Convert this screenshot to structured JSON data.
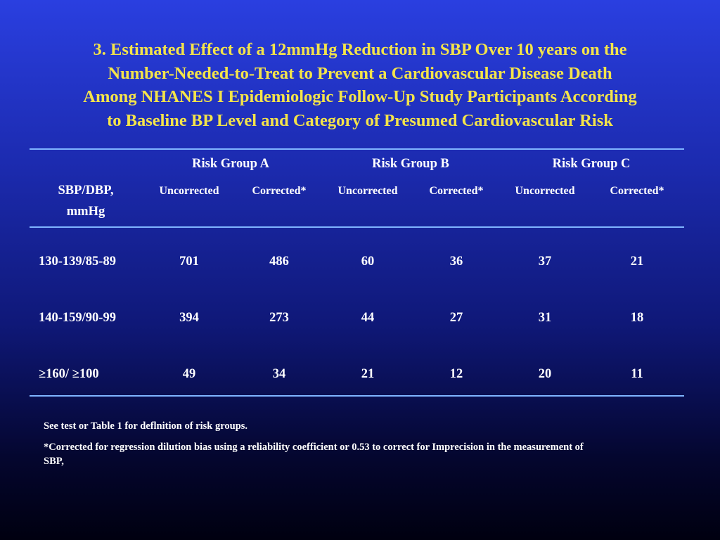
{
  "title_lines": [
    "3.  Estimated Effect of a 12mmHg Reduction in SBP Over 10 years on the",
    "Number-Needed-to-Treat to Prevent a Cardiovascular Disease Death",
    "Among NHANES I Epidemiologic Follow-Up Study Participants According",
    "to Baseline BP Level and Category of Presumed Cardiovascular Risk"
  ],
  "table": {
    "row_header_lines": [
      "SBP/DBP,",
      "mmHg"
    ],
    "groups": [
      "Risk Group A",
      "Risk Group B",
      "Risk Group C"
    ],
    "subheaders": [
      "Uncorrected",
      "Corrected*",
      "Uncorrected",
      "Corrected*",
      "Uncorrected",
      "Corrected*"
    ],
    "rows": [
      {
        "label": "130-139/85-89",
        "values": [
          "701",
          "486",
          "60",
          "36",
          "37",
          "21"
        ]
      },
      {
        "label": "140-159/90-99",
        "values": [
          "394",
          "273",
          "44",
          "27",
          "31",
          "18"
        ]
      },
      {
        "label": "≥160/ ≥100",
        "values": [
          "49",
          "34",
          "21",
          "12",
          "20",
          "11"
        ]
      }
    ]
  },
  "notes": [
    "See test or Table 1 for deflnition of risk groups.",
    "*Corrected for regression dilution bias using a reliability coefficient or 0.53 to correct for Imprecision in the measurement of SBP,"
  ]
}
